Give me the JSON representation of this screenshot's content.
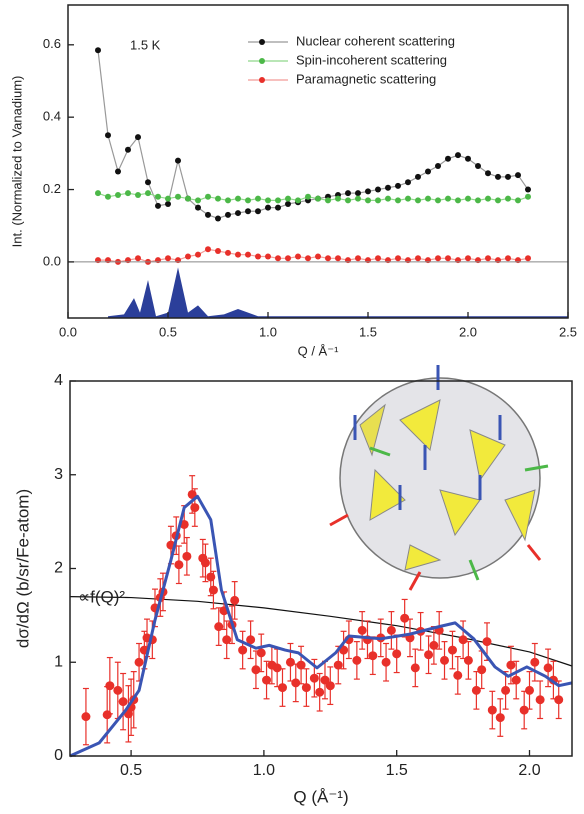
{
  "chart_data": [
    {
      "type": "line",
      "ylabel": "Int. (Normalized to Vanadium)",
      "xlabel": "Q / Å⁻¹",
      "annotation": "1.5 K",
      "xlim": [
        0,
        2.5
      ],
      "xticks": [
        {
          "value": 0,
          "label": "0.0"
        },
        0.5,
        {
          "value": 1,
          "label": "1.0"
        },
        1.5,
        {
          "value": 2,
          "label": "2.0"
        },
        2.5
      ],
      "ylim": [
        -0.155,
        0.71
      ],
      "yticks": [
        {
          "value": 0,
          "label": "0.0"
        },
        0.2,
        0.4,
        0.6
      ],
      "zero_line": true,
      "legend": "top-right",
      "x": [
        0.15,
        0.2,
        0.25,
        0.3,
        0.35,
        0.4,
        0.45,
        0.5,
        0.55,
        0.6,
        0.65,
        0.7,
        0.75,
        0.8,
        0.85,
        0.9,
        0.95,
        1.0,
        1.05,
        1.1,
        1.15,
        1.2,
        1.25,
        1.3,
        1.35,
        1.4,
        1.45,
        1.5,
        1.55,
        1.6,
        1.65,
        1.7,
        1.75,
        1.8,
        1.85,
        1.9,
        1.95,
        2.0,
        2.05,
        2.1,
        2.15,
        2.2,
        2.25,
        2.3
      ],
      "series": [
        {
          "name": "Nuclear coherent scattering",
          "color": "#111111",
          "line_color": "#999999",
          "values": [
            0.585,
            0.35,
            0.25,
            0.31,
            0.345,
            0.22,
            0.155,
            0.16,
            0.28,
            0.175,
            0.15,
            0.13,
            0.12,
            0.13,
            0.135,
            0.14,
            0.14,
            0.15,
            0.15,
            0.16,
            0.165,
            0.17,
            0.175,
            0.18,
            0.185,
            0.19,
            0.19,
            0.195,
            0.2,
            0.205,
            0.21,
            0.22,
            0.235,
            0.25,
            0.265,
            0.285,
            0.295,
            0.285,
            0.265,
            0.245,
            0.235,
            0.235,
            0.24,
            0.2
          ]
        },
        {
          "name": "Spin-incoherent scattering",
          "color": "#4cb848",
          "line_color": "#8fd88a",
          "values": [
            0.19,
            0.18,
            0.185,
            0.19,
            0.185,
            0.19,
            0.18,
            0.175,
            0.18,
            0.175,
            0.17,
            0.18,
            0.175,
            0.17,
            0.175,
            0.17,
            0.175,
            0.17,
            0.17,
            0.175,
            0.17,
            0.18,
            0.175,
            0.17,
            0.175,
            0.17,
            0.175,
            0.17,
            0.17,
            0.175,
            0.17,
            0.175,
            0.17,
            0.175,
            0.17,
            0.175,
            0.17,
            0.175,
            0.17,
            0.175,
            0.17,
            0.175,
            0.17,
            0.18
          ]
        },
        {
          "name": "Paramagnetic scattering",
          "color": "#e8302a",
          "line_color": "#f29a96",
          "values": [
            0.005,
            0.005,
            0,
            0.005,
            0.01,
            0,
            0.005,
            0.01,
            0.005,
            0.015,
            0.02,
            0.035,
            0.03,
            0.025,
            0.02,
            0.02,
            0.015,
            0.015,
            0.01,
            0.01,
            0.015,
            0.01,
            0.015,
            0.01,
            0.01,
            0.005,
            0.01,
            0.005,
            0.01,
            0.005,
            0.01,
            0.005,
            0.01,
            0.005,
            0.01,
            0.01,
            0.005,
            0.01,
            0.005,
            0.01,
            0.005,
            0.01,
            0.005,
            0.01
          ]
        },
        {
          "type": "area",
          "color": "#2b3f9a",
          "x": [
            0.2,
            0.28,
            0.33,
            0.36,
            0.4,
            0.44,
            0.5,
            0.55,
            0.6,
            0.65,
            0.7,
            0.78,
            0.85,
            0.95,
            1.2,
            2.5
          ],
          "values": [
            -0.15,
            -0.145,
            -0.1,
            -0.14,
            -0.05,
            -0.15,
            -0.14,
            -0.015,
            -0.14,
            -0.12,
            -0.15,
            -0.145,
            -0.13,
            -0.15,
            -0.15,
            -0.15
          ]
        }
      ]
    },
    {
      "type": "scatter",
      "ylabel": "dσ/dΩ (b/sr/Fe-atom)",
      "xlabel": "Q (Å⁻¹)",
      "annotation": "∝f(Q)²",
      "xlim": [
        0.27,
        2.16
      ],
      "xticks": [
        0.5,
        {
          "value": 1,
          "label": "1.0"
        },
        1.5,
        {
          "value": 2,
          "label": "2.0"
        }
      ],
      "ylim": [
        0,
        4
      ],
      "yticks": [
        0,
        1,
        2,
        3,
        4
      ],
      "series": [
        {
          "type": "line",
          "color": "#111111",
          "x": [
            0.27,
            0.5,
            0.75,
            1.0,
            1.25,
            1.5,
            1.75,
            2.0,
            2.16
          ],
          "values": [
            1.7,
            1.69,
            1.65,
            1.58,
            1.49,
            1.39,
            1.26,
            1.11,
            0.96
          ]
        },
        {
          "type": "scatter",
          "color": "#e8302a",
          "x": [
            0.33,
            0.41,
            0.42,
            0.45,
            0.47,
            0.49,
            0.5,
            0.51,
            0.53,
            0.55,
            0.56,
            0.58,
            0.59,
            0.61,
            0.62,
            0.65,
            0.67,
            0.68,
            0.7,
            0.71,
            0.73,
            0.74,
            0.77,
            0.78,
            0.8,
            0.81,
            0.83,
            0.85,
            0.86,
            0.88,
            0.89,
            0.92,
            0.95,
            0.97,
            0.99,
            1.01,
            1.03,
            1.05,
            1.07,
            1.1,
            1.12,
            1.14,
            1.16,
            1.19,
            1.21,
            1.23,
            1.25,
            1.28,
            1.3,
            1.32,
            1.35,
            1.37,
            1.39,
            1.41,
            1.44,
            1.46,
            1.48,
            1.5,
            1.53,
            1.55,
            1.57,
            1.59,
            1.62,
            1.64,
            1.66,
            1.68,
            1.71,
            1.73,
            1.75,
            1.77,
            1.8,
            1.82,
            1.84,
            1.86,
            1.89,
            1.91,
            1.93,
            1.95,
            1.98,
            2.0,
            2.02,
            2.04,
            2.07,
            2.09,
            2.11
          ],
          "values": [
            0.42,
            0.44,
            0.75,
            0.7,
            0.58,
            0.45,
            0.52,
            0.6,
            1.0,
            1.13,
            1.26,
            1.24,
            1.58,
            1.69,
            1.75,
            2.25,
            2.35,
            2.04,
            2.47,
            2.13,
            2.79,
            2.65,
            2.11,
            2.06,
            1.91,
            1.77,
            1.38,
            1.55,
            1.24,
            1.4,
            1.66,
            1.13,
            1.24,
            0.92,
            1.1,
            0.81,
            0.97,
            0.94,
            0.73,
            1.0,
            0.78,
            0.97,
            0.73,
            0.83,
            0.68,
            0.81,
            0.75,
            0.97,
            1.13,
            1.24,
            1.02,
            1.34,
            1.24,
            1.07,
            1.26,
            1.0,
            1.34,
            1.09,
            1.47,
            1.26,
            0.94,
            1.33,
            1.08,
            1.18,
            1.34,
            1.02,
            1.13,
            0.86,
            1.24,
            1.02,
            0.7,
            0.92,
            1.22,
            0.49,
            0.41,
            0.7,
            0.97,
            0.81,
            0.49,
            0.7,
            1.0,
            0.6,
            0.94,
            0.81,
            0.6
          ],
          "errors": [
            0.3,
            0.3,
            0.3,
            0.3,
            0.3,
            0.3,
            0.3,
            0.3,
            0.2,
            0.2,
            0.2,
            0.2,
            0.2,
            0.2,
            0.2,
            0.2,
            0.2,
            0.2,
            0.2,
            0.2,
            0.2,
            0.2,
            0.2,
            0.2,
            0.2,
            0.2,
            0.2,
            0.2,
            0.2,
            0.2,
            0.2,
            0.2,
            0.2,
            0.2,
            0.2,
            0.2,
            0.2,
            0.2,
            0.2,
            0.2,
            0.2,
            0.2,
            0.2,
            0.2,
            0.2,
            0.2,
            0.2,
            0.2,
            0.2,
            0.2,
            0.2,
            0.2,
            0.2,
            0.2,
            0.2,
            0.2,
            0.2,
            0.2,
            0.2,
            0.2,
            0.2,
            0.2,
            0.2,
            0.2,
            0.2,
            0.2,
            0.2,
            0.2,
            0.2,
            0.2,
            0.2,
            0.2,
            0.2,
            0.2,
            0.2,
            0.2,
            0.2,
            0.2,
            0.2,
            0.2,
            0.2,
            0.2,
            0.2,
            0.2,
            0.2
          ]
        },
        {
          "type": "line",
          "color": "#3a55b4",
          "width": 3,
          "x": [
            0.27,
            0.38,
            0.48,
            0.53,
            0.59,
            0.65,
            0.7,
            0.75,
            0.8,
            0.84,
            0.9,
            0.97,
            1.02,
            1.08,
            1.13,
            1.2,
            1.27,
            1.32,
            1.44,
            1.55,
            1.66,
            1.72,
            1.79,
            1.87,
            1.92,
            1.99,
            2.06,
            2.11,
            2.16
          ],
          "values": [
            0,
            0.14,
            0.49,
            0.7,
            1.45,
            2.09,
            2.65,
            2.77,
            2.52,
            1.77,
            1.24,
            1.15,
            1.18,
            1.13,
            1.1,
            0.94,
            1.1,
            1.28,
            1.25,
            1.3,
            1.38,
            1.42,
            1.25,
            0.95,
            0.85,
            0.95,
            0.85,
            0.75,
            0.78
          ]
        }
      ]
    }
  ]
}
